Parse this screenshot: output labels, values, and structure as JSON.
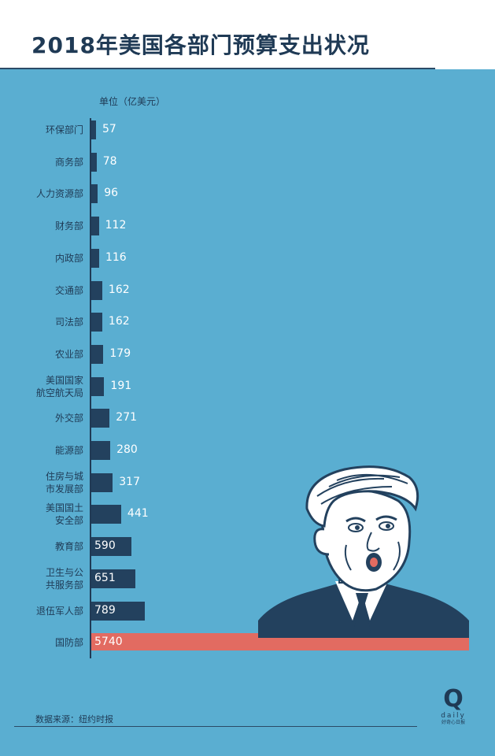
{
  "title": "2018年美国各部门预算支出状况",
  "unit_label": "单位（亿美元）",
  "source": "数据来源：纽约时报",
  "logo": {
    "mark": "Q",
    "word": "daily",
    "tagline": "好奇心日报"
  },
  "colors": {
    "background": "#5aaed1",
    "bar": "#23415e",
    "highlight": "#e26b61",
    "text": "#1f3a55"
  },
  "chart_data": {
    "type": "bar",
    "orientation": "horizontal",
    "categories": [
      [
        "环保部门"
      ],
      [
        "商务部"
      ],
      [
        "人力资源部"
      ],
      [
        "财务部"
      ],
      [
        "内政部"
      ],
      [
        "交通部"
      ],
      [
        "司法部"
      ],
      [
        "农业部"
      ],
      [
        "美国国家",
        "航空航天局"
      ],
      [
        "外交部"
      ],
      [
        "能源部"
      ],
      [
        "住房与城",
        "市发展部"
      ],
      [
        "美国国土",
        "安全部"
      ],
      [
        "教育部"
      ],
      [
        "卫生与公",
        "共服务部"
      ],
      [
        "退伍军人部"
      ],
      [
        "国防部"
      ]
    ],
    "values": [
      57,
      78,
      96,
      112,
      116,
      162,
      162,
      179,
      191,
      271,
      280,
      317,
      441,
      590,
      651,
      789,
      5740
    ],
    "labels": [
      "57",
      "78",
      "96",
      "112",
      "116",
      "162",
      "162",
      "179",
      "191",
      "271",
      "280",
      "317",
      "441",
      "590",
      "651",
      "789",
      "5740"
    ],
    "highlight_index": 16,
    "xlim": [
      0,
      5740
    ]
  }
}
